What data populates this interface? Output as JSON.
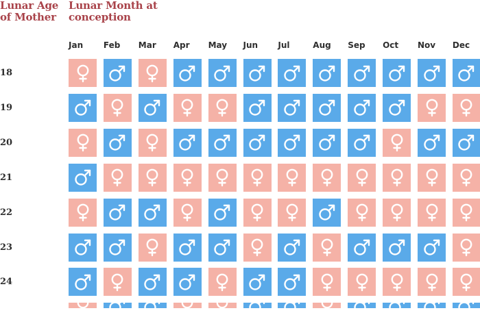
{
  "colors": {
    "male": "#5aaae9",
    "female": "#f5b2a7",
    "title": "#a9434a",
    "label": "#2e2e2e"
  },
  "header": {
    "row_axis_title": "Lunar Age of Mother",
    "column_axis_title": "Lunar Month at conception"
  },
  "months": [
    "Jan",
    "Feb",
    "Mar",
    "Apr",
    "May",
    "Jun",
    "Jul",
    "Aug",
    "Sep",
    "Oct",
    "Nov",
    "Dec"
  ],
  "rows": [
    {
      "age": "18",
      "cells": [
        "female",
        "male",
        "female",
        "male",
        "male",
        "male",
        "male",
        "male",
        "male",
        "male",
        "male",
        "male"
      ]
    },
    {
      "age": "19",
      "cells": [
        "male",
        "female",
        "male",
        "female",
        "female",
        "male",
        "male",
        "male",
        "male",
        "male",
        "female",
        "female"
      ]
    },
    {
      "age": "20",
      "cells": [
        "female",
        "male",
        "female",
        "male",
        "male",
        "male",
        "male",
        "male",
        "male",
        "female",
        "male",
        "male"
      ]
    },
    {
      "age": "21",
      "cells": [
        "male",
        "female",
        "female",
        "female",
        "female",
        "female",
        "female",
        "female",
        "female",
        "female",
        "female",
        "female"
      ]
    },
    {
      "age": "22",
      "cells": [
        "female",
        "male",
        "male",
        "female",
        "male",
        "female",
        "female",
        "male",
        "female",
        "female",
        "female",
        "female"
      ]
    },
    {
      "age": "23",
      "cells": [
        "male",
        "male",
        "female",
        "male",
        "male",
        "female",
        "male",
        "female",
        "male",
        "male",
        "male",
        "female"
      ]
    },
    {
      "age": "24",
      "cells": [
        "male",
        "female",
        "male",
        "male",
        "female",
        "male",
        "male",
        "female",
        "female",
        "female",
        "female",
        "female"
      ]
    },
    {
      "age": "",
      "cells": [
        "female",
        "male",
        "male",
        "female",
        "female",
        "male",
        "male",
        "female",
        "male",
        "male",
        "male",
        "male"
      ]
    }
  ]
}
